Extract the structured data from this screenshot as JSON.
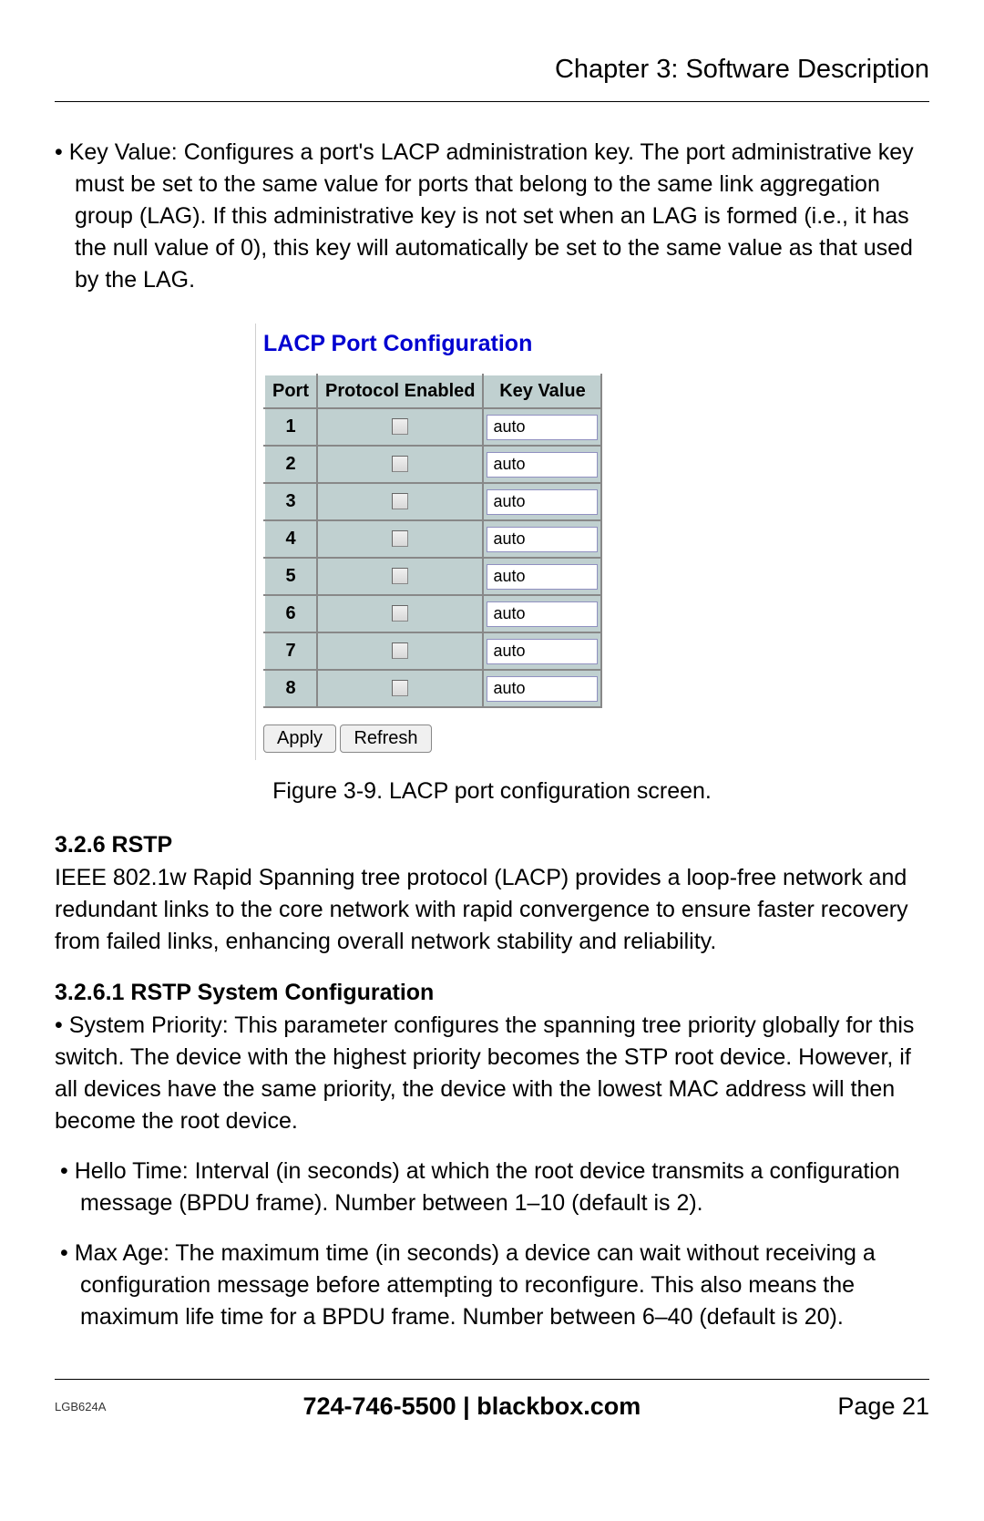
{
  "chapter_title": "Chapter 3: Software Description",
  "intro_para": "• Key Value: Configures a port's LACP administration key. The port administrative key must be set to the same value for ports that belong to the same link aggregation group (LAG). If this administrative key is not set when an LAG is formed (i.e., it has the null value of 0), this key will automatically be set to the same value as that used by the LAG.",
  "config": {
    "title": "LACP Port Configuration",
    "headers": {
      "port": "Port",
      "proto": "Protocol Enabled",
      "key": "Key Value"
    },
    "rows": [
      {
        "port": "1",
        "checked": false,
        "value": "auto"
      },
      {
        "port": "2",
        "checked": false,
        "value": "auto"
      },
      {
        "port": "3",
        "checked": false,
        "value": "auto"
      },
      {
        "port": "4",
        "checked": false,
        "value": "auto"
      },
      {
        "port": "5",
        "checked": false,
        "value": "auto"
      },
      {
        "port": "6",
        "checked": false,
        "value": "auto"
      },
      {
        "port": "7",
        "checked": false,
        "value": "auto"
      },
      {
        "port": "8",
        "checked": false,
        "value": "auto"
      }
    ],
    "buttons": {
      "apply": "Apply",
      "refresh": "Refresh"
    }
  },
  "figure_caption": "Figure 3-9. LACP port configuration screen.",
  "section_rstp": {
    "num_title": "3.2.6 RSTP",
    "body": "IEEE 802.1w Rapid Spanning tree protocol (LACP) provides a loop-free network and redundant links to the core network with rapid convergence to ensure faster recovery from failed links, enhancing overall network stability and reliability.",
    "sub_title": "3.2.6.1 RSTP System Configuration",
    "sub_body": "• System Priority: This parameter configures the spanning tree priority globally for this switch. The device with the highest priority becomes the STP root device. However, if all devices have the same priority, the device with the lowest MAC address will then become the root device.",
    "bullet_hello": "• Hello Time: Interval (in seconds) at which the root device transmits a configuration message (BPDU frame). Number between 1–10 (default is 2).",
    "bullet_maxage": "• Max Age: The maximum time (in seconds) a device can wait without receiving a configuration message before attempting to reconfigure. This also means the maximum life time for a BPDU frame. Number between 6–40 (default is 20)."
  },
  "footer": {
    "model": "LGB624A",
    "center": "724-746-5500   |   blackbox.com",
    "page": "Page 21"
  },
  "colors": {
    "table_bg": "#c0d0d0",
    "config_title": "#0000d0"
  }
}
